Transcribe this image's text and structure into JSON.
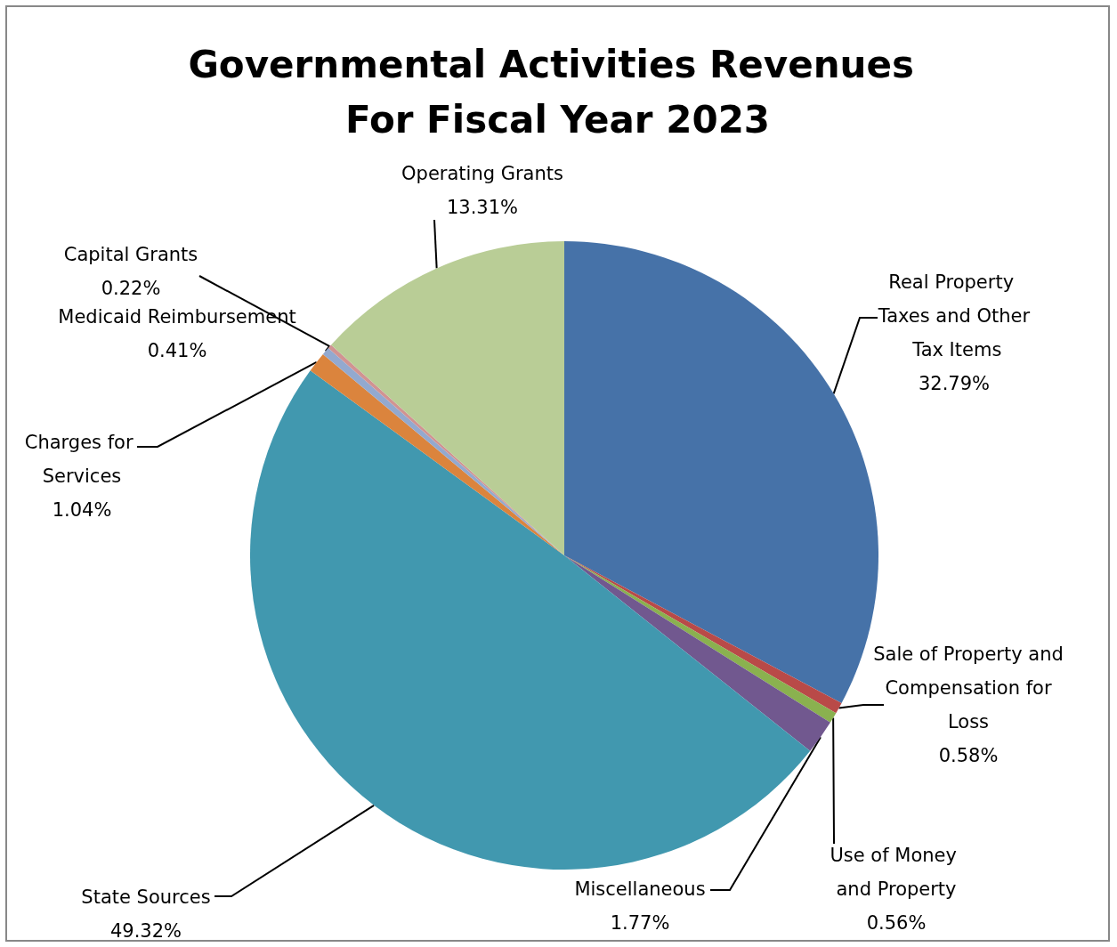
{
  "chart_data": {
    "type": "pie",
    "title": "Governmental Activities Revenues For Fiscal Year 2023",
    "categories": [
      "Real Property Taxes and Other Tax Items",
      "Sale of Property and Compensation for Loss",
      "Use of Money and Property",
      "Miscellaneous",
      "State Sources",
      "Charges for Services",
      "Medicaid Reimbursement",
      "Capital Grants",
      "Operating Grants"
    ],
    "values": [
      32.79,
      0.58,
      0.56,
      1.77,
      49.32,
      1.04,
      0.41,
      0.22,
      13.31
    ],
    "value_labels": [
      "32.79%",
      "0.58%",
      "0.56%",
      "1.77%",
      "49.32%",
      "1.04%",
      "0.41%",
      "0.22%",
      "13.31%"
    ],
    "colors": [
      "#4672a8",
      "#b94a48",
      "#8ab14f",
      "#71588f",
      "#4198af",
      "#db843d",
      "#93a9cf",
      "#d19392",
      "#b9cd96"
    ],
    "legend": false
  }
}
